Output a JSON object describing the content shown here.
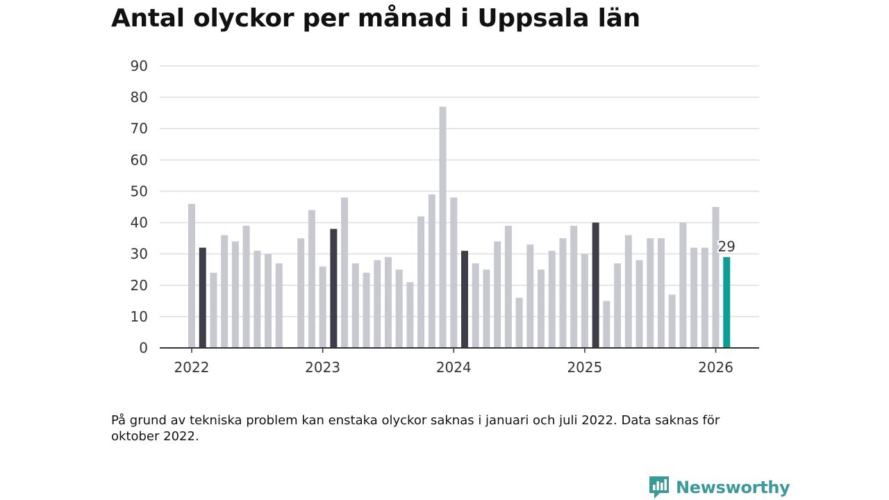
{
  "title": "Antal olyckor per månad i Uppsala län",
  "note": "På grund av tekniska problem kan enstaka olyckor saknas i januari och juli 2022. Data saknas för oktober 2022.",
  "brand": {
    "name": "Newsworthy",
    "color": "#3b9a98"
  },
  "colors": {
    "default_bar": "#c8c8d0",
    "february_bar": "#3e3e4a",
    "latest_bar": "#0f9e94",
    "grid": "#dddddd",
    "axis": "#333333"
  },
  "chart_data": {
    "type": "bar",
    "title": "Antal olyckor per månad i Uppsala län",
    "xlabel": "",
    "ylabel": "",
    "ylim": [
      0,
      90
    ],
    "yticks": [
      "0",
      "10",
      "20",
      "30",
      "40",
      "50",
      "60",
      "70",
      "80",
      "90"
    ],
    "xticks": [
      {
        "label": "2022",
        "month": "2022-01"
      },
      {
        "label": "2023",
        "month": "2023-01"
      },
      {
        "label": "2024",
        "month": "2024-01"
      },
      {
        "label": "2025",
        "month": "2025-01"
      },
      {
        "label": "2026",
        "month": "2026-01"
      }
    ],
    "grid": true,
    "legend": "none",
    "highlight_label": "29",
    "bars": [
      {
        "month": "2022-01",
        "value": 46,
        "style": "default"
      },
      {
        "month": "2022-02",
        "value": 32,
        "style": "february"
      },
      {
        "month": "2022-03",
        "value": 24,
        "style": "default"
      },
      {
        "month": "2022-04",
        "value": 36,
        "style": "default"
      },
      {
        "month": "2022-05",
        "value": 34,
        "style": "default"
      },
      {
        "month": "2022-06",
        "value": 39,
        "style": "default"
      },
      {
        "month": "2022-07",
        "value": 31,
        "style": "default"
      },
      {
        "month": "2022-08",
        "value": 30,
        "style": "default"
      },
      {
        "month": "2022-09",
        "value": 27,
        "style": "default"
      },
      {
        "month": "2022-10",
        "value": null,
        "style": "default"
      },
      {
        "month": "2022-11",
        "value": 35,
        "style": "default"
      },
      {
        "month": "2022-12",
        "value": 44,
        "style": "default"
      },
      {
        "month": "2023-01",
        "value": 26,
        "style": "default"
      },
      {
        "month": "2023-02",
        "value": 38,
        "style": "february"
      },
      {
        "month": "2023-03",
        "value": 48,
        "style": "default"
      },
      {
        "month": "2023-04",
        "value": 27,
        "style": "default"
      },
      {
        "month": "2023-05",
        "value": 24,
        "style": "default"
      },
      {
        "month": "2023-06",
        "value": 28,
        "style": "default"
      },
      {
        "month": "2023-07",
        "value": 29,
        "style": "default"
      },
      {
        "month": "2023-08",
        "value": 25,
        "style": "default"
      },
      {
        "month": "2023-09",
        "value": 21,
        "style": "default"
      },
      {
        "month": "2023-10",
        "value": 42,
        "style": "default"
      },
      {
        "month": "2023-11",
        "value": 49,
        "style": "default"
      },
      {
        "month": "2023-12",
        "value": 77,
        "style": "default"
      },
      {
        "month": "2024-01",
        "value": 48,
        "style": "default"
      },
      {
        "month": "2024-02",
        "value": 31,
        "style": "february"
      },
      {
        "month": "2024-03",
        "value": 27,
        "style": "default"
      },
      {
        "month": "2024-04",
        "value": 25,
        "style": "default"
      },
      {
        "month": "2024-05",
        "value": 34,
        "style": "default"
      },
      {
        "month": "2024-06",
        "value": 39,
        "style": "default"
      },
      {
        "month": "2024-07",
        "value": 16,
        "style": "default"
      },
      {
        "month": "2024-08",
        "value": 33,
        "style": "default"
      },
      {
        "month": "2024-09",
        "value": 25,
        "style": "default"
      },
      {
        "month": "2024-10",
        "value": 31,
        "style": "default"
      },
      {
        "month": "2024-11",
        "value": 35,
        "style": "default"
      },
      {
        "month": "2024-12",
        "value": 39,
        "style": "default"
      },
      {
        "month": "2025-01",
        "value": 30,
        "style": "default"
      },
      {
        "month": "2025-02",
        "value": 40,
        "style": "february"
      },
      {
        "month": "2025-03",
        "value": 15,
        "style": "default"
      },
      {
        "month": "2025-04",
        "value": 27,
        "style": "default"
      },
      {
        "month": "2025-05",
        "value": 36,
        "style": "default"
      },
      {
        "month": "2025-06",
        "value": 28,
        "style": "default"
      },
      {
        "month": "2025-07",
        "value": 35,
        "style": "default"
      },
      {
        "month": "2025-08",
        "value": 35,
        "style": "default"
      },
      {
        "month": "2025-09",
        "value": 17,
        "style": "default"
      },
      {
        "month": "2025-10",
        "value": 40,
        "style": "default"
      },
      {
        "month": "2025-11",
        "value": 32,
        "style": "default"
      },
      {
        "month": "2025-12",
        "value": 32,
        "style": "default"
      },
      {
        "month": "2026-01",
        "value": 45,
        "style": "default"
      },
      {
        "month": "2026-02",
        "value": 29,
        "style": "latest"
      }
    ]
  }
}
